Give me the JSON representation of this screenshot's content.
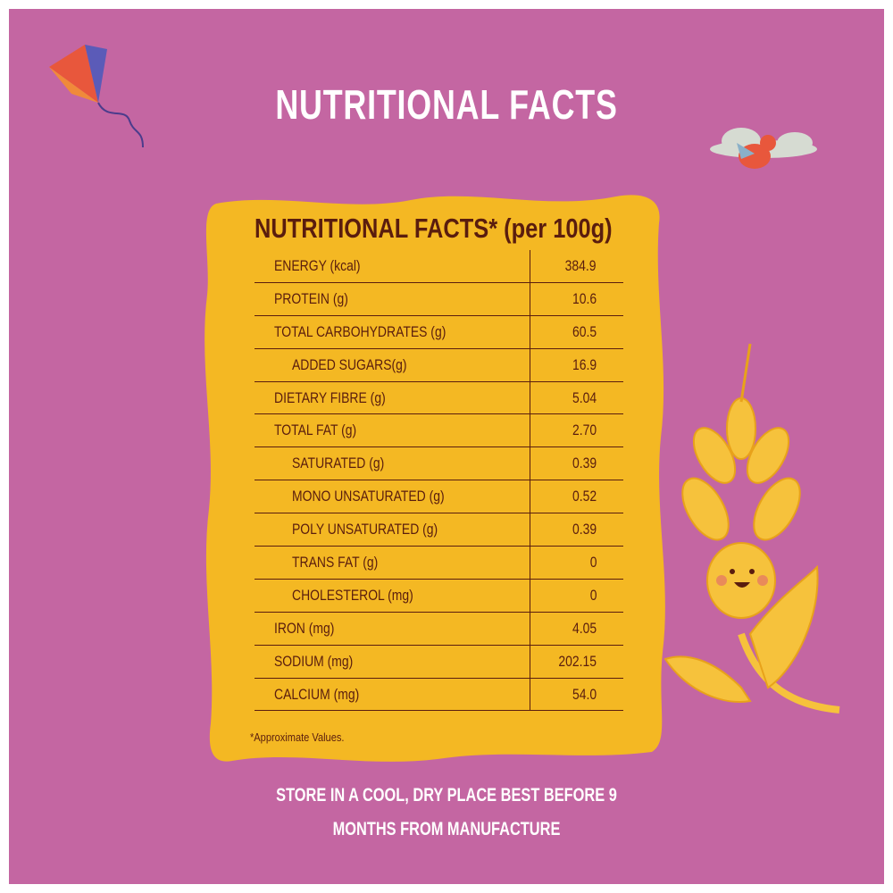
{
  "header": {
    "title": "NUTRITIONAL FACTS"
  },
  "table": {
    "title": "NUTRITIONAL FACTS* (per 100g)",
    "rows": [
      {
        "label": "ENERGY (kcal)",
        "value": "384.9"
      },
      {
        "label": "PROTEIN (g)",
        "value": "10.6"
      },
      {
        "label": "TOTAL CARBOHYDRATES (g)",
        "value": "60.5",
        "subrows": [
          {
            "label": "ADDED SUGARS(g)",
            "value": "16.9"
          }
        ]
      },
      {
        "label": "DIETARY FIBRE (g)",
        "value": "5.04"
      },
      {
        "label": "TOTAL FAT (g)",
        "value": "2.70",
        "subrows": [
          {
            "label": "SATURATED (g)",
            "value": "0.39"
          },
          {
            "label": "MONO UNSATURATED (g)",
            "value": "0.52"
          },
          {
            "label": "POLY UNSATURATED (g)",
            "value": "0.39"
          },
          {
            "label": "TRANS FAT (g)",
            "value": "0"
          },
          {
            "label": "CHOLESTEROL (mg)",
            "value": "0"
          }
        ]
      },
      {
        "label": "IRON (mg)",
        "value": "4.05"
      },
      {
        "label": "SODIUM (mg)",
        "value": "202.15"
      },
      {
        "label": "CALCIUM (mg)",
        "value": "54.0"
      }
    ],
    "footnote": "*Approximate Values."
  },
  "storage": {
    "lines": [
      "STORE IN A COOL, DRY PLACE BEST BEFORE 9",
      "MONTHS FROM MANUFACTURE"
    ]
  }
}
